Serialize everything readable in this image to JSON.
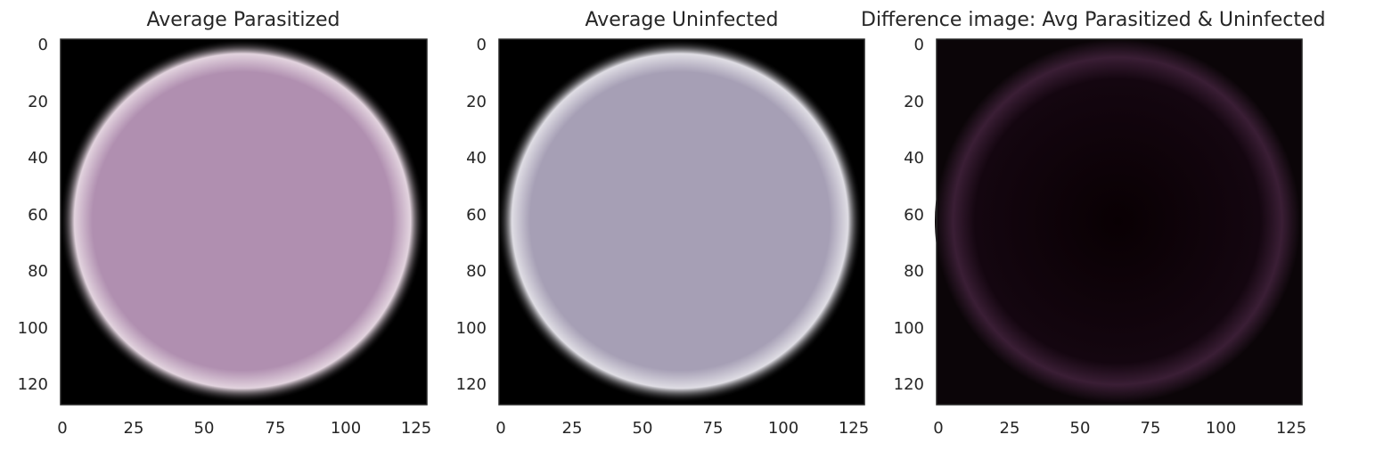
{
  "figure": {
    "panels": [
      {
        "title": "Average Parasitized",
        "x_ticks": [
          "0",
          "25",
          "50",
          "75",
          "100",
          "125"
        ],
        "y_ticks": [
          "0",
          "20",
          "40",
          "60",
          "80",
          "100",
          "120"
        ],
        "image": {
          "cell_color": "#b08fb0",
          "edge_color": "#e2d3de",
          "background": "#000000"
        }
      },
      {
        "title": "Average Uninfected",
        "x_ticks": [
          "0",
          "25",
          "50",
          "75",
          "100",
          "125"
        ],
        "y_ticks": [
          "0",
          "20",
          "40",
          "60",
          "80",
          "100",
          "120"
        ],
        "image": {
          "cell_color": "#a69fb5",
          "edge_color": "#dfdde4",
          "background": "#000000"
        }
      },
      {
        "title": "Difference image: Avg Parasitized & Uninfected",
        "x_ticks": [
          "0",
          "25",
          "50",
          "75",
          "100",
          "125"
        ],
        "y_ticks": [
          "0",
          "20",
          "40",
          "60",
          "80",
          "100",
          "120"
        ],
        "image": {
          "cell_color": "#090003",
          "edge_color": "#3a1e35",
          "background": "#0b0508"
        }
      }
    ]
  }
}
